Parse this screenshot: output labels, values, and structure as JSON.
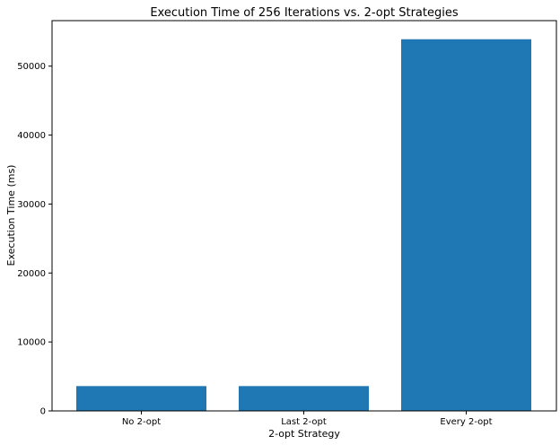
{
  "chart_data": {
    "type": "bar",
    "title": "Execution Time of 256 Iterations vs. 2-opt Strategies",
    "xlabel": "2-opt Strategy",
    "ylabel": "Execution Time (ms)",
    "categories": [
      "No 2-opt",
      "Last 2-opt",
      "Every 2-opt"
    ],
    "values": [
      3600,
      3600,
      53900
    ],
    "ylim": [
      0,
      56600
    ],
    "yticks": [
      0,
      10000,
      20000,
      30000,
      40000,
      50000
    ],
    "grid": false,
    "bar_color": "#1f77b4"
  }
}
